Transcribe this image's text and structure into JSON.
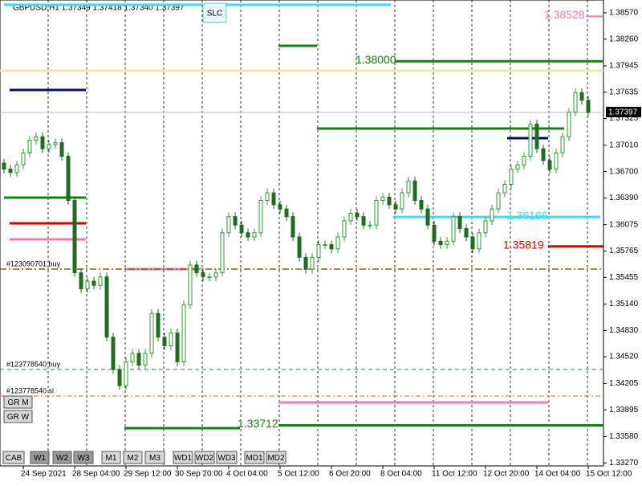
{
  "chart_data": {
    "type": "candlestick",
    "title": "GBPUSD,H1  1.37349 1.37418 1.37340 1.37397",
    "ylim": [
      1.33234,
      1.38721
    ],
    "yticks": [
      {
        "value": 1.3857,
        "label": "1.38570"
      },
      {
        "value": 1.3826,
        "label": "1.38260"
      },
      1.37945,
      1.37635,
      1.37325,
      {
        "value": 1.3701,
        "label": "1.37010"
      },
      {
        "value": 1.367,
        "label": "1.36700"
      },
      {
        "value": 1.3639,
        "label": "1.36390"
      },
      1.36075,
      1.35765,
      1.35455,
      {
        "value": 1.3514,
        "label": "1.35140"
      },
      {
        "value": 1.3483,
        "label": "1.34830"
      },
      {
        "value": 1.3452,
        "label": "1.34520"
      },
      1.34205,
      1.33895,
      {
        "value": 1.3358,
        "label": "1.33580"
      },
      {
        "value": 1.3327,
        "label": "1.33270"
      }
    ],
    "current_price": 1.37397,
    "categories": [
      null,
      null,
      null,
      "24 Sep 2021",
      null,
      null,
      null,
      null,
      null,
      null,
      null,
      "28 Sep 04:00",
      null,
      null,
      null,
      null,
      null,
      null,
      null,
      "29 Sep 12:00",
      null,
      null,
      null,
      null,
      null,
      null,
      null,
      "30 Sep 20:00",
      null,
      null,
      null,
      null,
      null,
      null,
      null,
      "4 Oct 04:00",
      null,
      null,
      null,
      null,
      null,
      null,
      null,
      "5 Oct 12:00",
      null,
      null,
      null,
      null,
      null,
      null,
      null,
      "6 Oct 20:00",
      null,
      null,
      null,
      null,
      null,
      null,
      null,
      "8 Oct 04:00",
      null,
      null,
      null,
      null,
      null,
      null,
      null,
      "11 Oct 12:00",
      null,
      null,
      null,
      null,
      null,
      null,
      null,
      "12 Oct 20:00",
      null,
      null,
      null,
      null,
      null,
      null,
      null,
      "14 Oct 04:00",
      null,
      null,
      null,
      null,
      null,
      null,
      null,
      "15 Oct 12:00"
    ],
    "up_color": "#2e9b2e",
    "down_color": "#1f6b1f",
    "ohlc": [
      [
        1.368,
        1.3685,
        1.3668,
        1.3673
      ],
      [
        1.3673,
        1.3678,
        1.3664,
        1.3669
      ],
      [
        1.3669,
        1.3683,
        1.3664,
        1.3678
      ],
      [
        1.3678,
        1.3697,
        1.3673,
        1.3692
      ],
      [
        1.3692,
        1.3712,
        1.3687,
        1.3707
      ],
      [
        1.3707,
        1.3716,
        1.3702,
        1.3711
      ],
      [
        1.3711,
        1.3716,
        1.3692,
        1.3697
      ],
      [
        1.3697,
        1.3707,
        1.3692,
        1.3702
      ],
      [
        1.3702,
        1.3709,
        1.3697,
        1.3704
      ],
      [
        1.3704,
        1.3709,
        1.3683,
        1.3688
      ],
      [
        1.3688,
        1.3693,
        1.3631,
        1.3636
      ],
      [
        1.3636,
        1.3641,
        1.3546,
        1.3551
      ],
      [
        1.3551,
        1.3556,
        1.3527,
        1.3532
      ],
      [
        1.3532,
        1.3546,
        1.3527,
        1.3541
      ],
      [
        1.3541,
        1.3546,
        1.3531,
        1.3536
      ],
      [
        1.3536,
        1.3551,
        1.3531,
        1.3546
      ],
      [
        1.3546,
        1.3551,
        1.347,
        1.3475
      ],
      [
        1.3475,
        1.348,
        1.3432,
        1.3437
      ],
      [
        1.3437,
        1.3442,
        1.3413,
        1.3418
      ],
      [
        1.3418,
        1.3451,
        1.3413,
        1.3446
      ],
      [
        1.3446,
        1.3461,
        1.3441,
        1.3456
      ],
      [
        1.3456,
        1.3461,
        1.3437,
        1.3442
      ],
      [
        1.3442,
        1.3461,
        1.3437,
        1.3456
      ],
      [
        1.3456,
        1.3508,
        1.3451,
        1.3503
      ],
      [
        1.3503,
        1.3508,
        1.347,
        1.3475
      ],
      [
        1.3475,
        1.348,
        1.346,
        1.3465
      ],
      [
        1.3465,
        1.3485,
        1.346,
        1.348
      ],
      [
        1.348,
        1.3485,
        1.3441,
        1.3446
      ],
      [
        1.3446,
        1.3518,
        1.3441,
        1.3513
      ],
      [
        1.3513,
        1.3565,
        1.3508,
        1.356
      ],
      [
        1.356,
        1.3565,
        1.3546,
        1.3551
      ],
      [
        1.3551,
        1.3556,
        1.3541,
        1.3546
      ],
      [
        1.3546,
        1.3551,
        1.3541,
        1.3546
      ],
      [
        1.3546,
        1.3556,
        1.3541,
        1.3551
      ],
      [
        1.3551,
        1.3603,
        1.3546,
        1.3598
      ],
      [
        1.3598,
        1.3622,
        1.3593,
        1.3617
      ],
      [
        1.3617,
        1.3622,
        1.3602,
        1.3607
      ],
      [
        1.3607,
        1.3612,
        1.3593,
        1.3598
      ],
      [
        1.3598,
        1.3603,
        1.3588,
        1.3593
      ],
      [
        1.3593,
        1.3603,
        1.3588,
        1.3598
      ],
      [
        1.3598,
        1.3641,
        1.3593,
        1.3636
      ],
      [
        1.3636,
        1.365,
        1.3631,
        1.3645
      ],
      [
        1.3645,
        1.365,
        1.3626,
        1.3631
      ],
      [
        1.3631,
        1.3636,
        1.3621,
        1.3626
      ],
      [
        1.3626,
        1.3631,
        1.3612,
        1.3617
      ],
      [
        1.3617,
        1.3622,
        1.3588,
        1.3593
      ],
      [
        1.3593,
        1.3598,
        1.3564,
        1.3569
      ],
      [
        1.3569,
        1.3574,
        1.355,
        1.3555
      ],
      [
        1.3555,
        1.3574,
        1.355,
        1.3569
      ],
      [
        1.3569,
        1.3589,
        1.3564,
        1.3584
      ],
      [
        1.3584,
        1.3589,
        1.3579,
        1.3584
      ],
      [
        1.3584,
        1.3589,
        1.3574,
        1.3579
      ],
      [
        1.3579,
        1.3598,
        1.3574,
        1.3593
      ],
      [
        1.3593,
        1.3617,
        1.3588,
        1.3612
      ],
      [
        1.3612,
        1.3626,
        1.3607,
        1.3621
      ],
      [
        1.3621,
        1.3626,
        1.3612,
        1.3617
      ],
      [
        1.3617,
        1.3622,
        1.3602,
        1.3607
      ],
      [
        1.3607,
        1.3612,
        1.3602,
        1.3607
      ],
      [
        1.3607,
        1.3641,
        1.3602,
        1.3636
      ],
      [
        1.3636,
        1.3645,
        1.3631,
        1.364
      ],
      [
        1.364,
        1.3645,
        1.3626,
        1.3631
      ],
      [
        1.3631,
        1.3636,
        1.3621,
        1.3626
      ],
      [
        1.3626,
        1.365,
        1.3621,
        1.3645
      ],
      [
        1.3645,
        1.3664,
        1.364,
        1.3659
      ],
      [
        1.3659,
        1.3664,
        1.3631,
        1.3636
      ],
      [
        1.3636,
        1.3641,
        1.3621,
        1.3626
      ],
      [
        1.3626,
        1.3631,
        1.3602,
        1.3607
      ],
      [
        1.3607,
        1.3612,
        1.3583,
        1.3588
      ],
      [
        1.3588,
        1.3593,
        1.3579,
        1.3584
      ],
      [
        1.3584,
        1.3593,
        1.3579,
        1.3588
      ],
      [
        1.3588,
        1.3622,
        1.3583,
        1.3617
      ],
      [
        1.3617,
        1.3622,
        1.3598,
        1.3603
      ],
      [
        1.3603,
        1.3608,
        1.3588,
        1.3593
      ],
      [
        1.3593,
        1.3598,
        1.3574,
        1.3579
      ],
      [
        1.3579,
        1.3603,
        1.3574,
        1.3598
      ],
      [
        1.3598,
        1.3617,
        1.3593,
        1.3612
      ],
      [
        1.3612,
        1.3631,
        1.3607,
        1.3626
      ],
      [
        1.3626,
        1.365,
        1.3621,
        1.3645
      ],
      [
        1.3645,
        1.366,
        1.364,
        1.3655
      ],
      [
        1.3655,
        1.3678,
        1.365,
        1.3673
      ],
      [
        1.3673,
        1.3683,
        1.3668,
        1.3678
      ],
      [
        1.3678,
        1.3693,
        1.3673,
        1.3688
      ],
      [
        1.3688,
        1.3731,
        1.3683,
        1.3726
      ],
      [
        1.3726,
        1.3731,
        1.3692,
        1.3697
      ],
      [
        1.3697,
        1.3702,
        1.3678,
        1.3683
      ],
      [
        1.3683,
        1.3688,
        1.3668,
        1.3673
      ],
      [
        1.3673,
        1.3697,
        1.3668,
        1.3692
      ],
      [
        1.3692,
        1.3716,
        1.3687,
        1.3711
      ],
      [
        1.3711,
        1.3745,
        1.3706,
        1.374
      ],
      [
        1.374,
        1.3768,
        1.3735,
        1.3763
      ],
      [
        1.3763,
        1.3768,
        1.3749,
        1.3754
      ],
      [
        1.3754,
        1.3759,
        1.3735,
        1.374
      ]
    ],
    "levels": [
      {
        "value": 1.38664,
        "color": "#33e0f0"
      },
      {
        "value": 1.38528,
        "color": "#f07ab8",
        "label": "1.38528"
      },
      {
        "value": 1.38182,
        "color": "#128012"
      },
      {
        "value": 1.38,
        "color": "#128012",
        "label": "1.38000"
      },
      {
        "value": 1.37889,
        "color": "#f2e6a6"
      },
      {
        "value": 1.37661,
        "color": "#0a0a6e"
      },
      {
        "value": 1.37207,
        "color": "#128012"
      },
      {
        "value": 1.37094,
        "color": "#0a0a6e"
      },
      {
        "value": 1.36394,
        "color": "#128012"
      },
      {
        "value": 1.36166,
        "color": "#33e0f0",
        "label": "1.36166"
      },
      {
        "value": 1.36091,
        "color": "#dd0000"
      },
      {
        "value": 1.35902,
        "color": "#f07ab8"
      },
      {
        "value": 1.35819,
        "color": "#dd0000",
        "label": "1.35819"
      },
      {
        "value": 1.35552,
        "color": "#f07ab8"
      },
      {
        "value": 1.33712,
        "color": "#128012",
        "label": "1.33712"
      },
      {
        "value": 1.33679,
        "color": "#128012"
      },
      {
        "value": 1.33981,
        "color": "#f07ab8"
      }
    ],
    "orders": [
      {
        "value": 1.35552,
        "color": "#7a6a00",
        "label": "#123090701 buy"
      },
      {
        "value": 1.3437,
        "color": "#2e8b57",
        "label": "#123778540 buy"
      },
      {
        "value": 1.34057,
        "color": "#c0703a",
        "label": "#123778540 sl"
      }
    ],
    "buttons": [
      "SLC",
      "GR M",
      "GR W",
      "CAB",
      "W1",
      "W2",
      "W3",
      "M1",
      "M2",
      "M3",
      "WD1",
      "WD2",
      "WD3",
      "MD1",
      "MD2"
    ]
  }
}
